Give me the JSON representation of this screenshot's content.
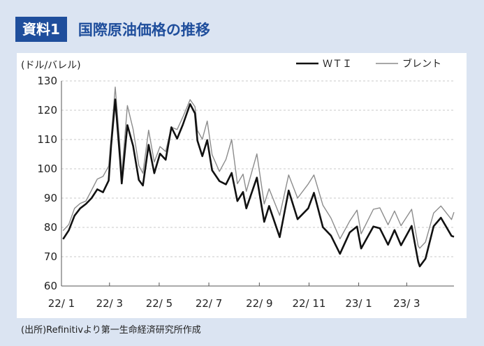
{
  "header": {
    "badge": "資料1",
    "title": "国際原油価格の推移"
  },
  "source": "(出所)Refinitivより第一生命経済研究所作成",
  "colors": {
    "frame_bg": "#dbe4f2",
    "badge_bg": "#1f4e9c",
    "title": "#1f4e9c",
    "wti": "#111111",
    "brent": "#8c8c8c",
    "grid": "#c8c8c8"
  },
  "chart_data": {
    "type": "line",
    "unit_label": "(ドル/バレル)",
    "ylim": [
      60,
      130
    ],
    "yticks": [
      60,
      70,
      80,
      90,
      100,
      110,
      120,
      130
    ],
    "x_range": [
      "2022-01-01",
      "2023-04-28"
    ],
    "x_tick_labels": [
      "22/ 1",
      "22/ 3",
      "22/ 5",
      "22/ 7",
      "22/ 9",
      "22/ 11",
      "23/ 1",
      "23/ 3"
    ],
    "x_tick_dates": [
      "2022-01-01",
      "2022-03-01",
      "2022-05-01",
      "2022-07-01",
      "2022-09-01",
      "2022-11-01",
      "2023-01-01",
      "2023-03-01"
    ],
    "grid": "horizontal dashed",
    "legend": "top-right",
    "series": [
      {
        "name": "WTI",
        "legend_label": "ＷＴＩ",
        "points": [
          [
            "2022-01-03",
            76.0
          ],
          [
            "2022-01-10",
            79.0
          ],
          [
            "2022-01-17",
            84.0
          ],
          [
            "2022-01-24",
            86.5
          ],
          [
            "2022-01-31",
            88.0
          ],
          [
            "2022-02-07",
            90.0
          ],
          [
            "2022-02-14",
            93.0
          ],
          [
            "2022-02-21",
            92.0
          ],
          [
            "2022-02-28",
            96.0
          ],
          [
            "2022-03-03",
            108.0
          ],
          [
            "2022-03-08",
            123.7
          ],
          [
            "2022-03-14",
            103.0
          ],
          [
            "2022-03-16",
            95.0
          ],
          [
            "2022-03-23",
            114.9
          ],
          [
            "2022-03-30",
            107.8
          ],
          [
            "2022-04-06",
            96.2
          ],
          [
            "2022-04-11",
            94.3
          ],
          [
            "2022-04-18",
            108.2
          ],
          [
            "2022-04-25",
            98.5
          ],
          [
            "2022-05-02",
            105.2
          ],
          [
            "2022-05-09",
            103.1
          ],
          [
            "2022-05-16",
            114.2
          ],
          [
            "2022-05-23",
            110.3
          ],
          [
            "2022-05-30",
            115.0
          ],
          [
            "2022-06-08",
            122.1
          ],
          [
            "2022-06-14",
            118.9
          ],
          [
            "2022-06-17",
            109.6
          ],
          [
            "2022-06-23",
            104.3
          ],
          [
            "2022-06-29",
            109.8
          ],
          [
            "2022-07-05",
            99.5
          ],
          [
            "2022-07-14",
            95.8
          ],
          [
            "2022-07-22",
            94.7
          ],
          [
            "2022-07-29",
            98.6
          ],
          [
            "2022-08-05",
            89.0
          ],
          [
            "2022-08-12",
            92.1
          ],
          [
            "2022-08-16",
            86.5
          ],
          [
            "2022-08-29",
            97.0
          ],
          [
            "2022-09-07",
            81.9
          ],
          [
            "2022-09-13",
            87.3
          ],
          [
            "2022-09-26",
            76.7
          ],
          [
            "2022-10-07",
            92.6
          ],
          [
            "2022-10-18",
            82.8
          ],
          [
            "2022-10-31",
            86.5
          ],
          [
            "2022-11-07",
            91.8
          ],
          [
            "2022-11-18",
            80.1
          ],
          [
            "2022-11-28",
            77.2
          ],
          [
            "2022-12-09",
            71.0
          ],
          [
            "2022-12-21",
            78.3
          ],
          [
            "2022-12-30",
            80.3
          ],
          [
            "2023-01-04",
            72.8
          ],
          [
            "2023-01-19",
            80.3
          ],
          [
            "2023-01-27",
            79.7
          ],
          [
            "2023-02-06",
            74.1
          ],
          [
            "2023-02-14",
            79.1
          ],
          [
            "2023-02-22",
            73.9
          ],
          [
            "2023-03-07",
            80.5
          ],
          [
            "2023-03-15",
            68.4
          ],
          [
            "2023-03-17",
            66.7
          ],
          [
            "2023-03-24",
            69.3
          ],
          [
            "2023-04-03",
            80.4
          ],
          [
            "2023-04-12",
            83.3
          ],
          [
            "2023-04-25",
            77.1
          ],
          [
            "2023-04-28",
            76.8
          ]
        ]
      },
      {
        "name": "ブレント",
        "legend_label": "ブレント",
        "points": [
          [
            "2022-01-03",
            78.9
          ],
          [
            "2022-01-10",
            81.0
          ],
          [
            "2022-01-17",
            86.5
          ],
          [
            "2022-01-24",
            88.2
          ],
          [
            "2022-01-31",
            89.0
          ],
          [
            "2022-02-07",
            92.7
          ],
          [
            "2022-02-14",
            96.5
          ],
          [
            "2022-02-21",
            97.4
          ],
          [
            "2022-02-28",
            100.9
          ],
          [
            "2022-03-03",
            110.5
          ],
          [
            "2022-03-08",
            127.9
          ],
          [
            "2022-03-14",
            106.9
          ],
          [
            "2022-03-16",
            98.0
          ],
          [
            "2022-03-23",
            121.6
          ],
          [
            "2022-03-30",
            113.5
          ],
          [
            "2022-04-06",
            101.1
          ],
          [
            "2022-04-11",
            98.5
          ],
          [
            "2022-04-18",
            113.2
          ],
          [
            "2022-04-25",
            102.3
          ],
          [
            "2022-05-02",
            107.6
          ],
          [
            "2022-05-09",
            105.9
          ],
          [
            "2022-05-16",
            114.2
          ],
          [
            "2022-05-23",
            113.4
          ],
          [
            "2022-05-30",
            117.6
          ],
          [
            "2022-06-08",
            123.6
          ],
          [
            "2022-06-14",
            121.2
          ],
          [
            "2022-06-17",
            113.1
          ],
          [
            "2022-06-23",
            110.1
          ],
          [
            "2022-06-29",
            116.3
          ],
          [
            "2022-07-05",
            104.8
          ],
          [
            "2022-07-14",
            99.1
          ],
          [
            "2022-07-22",
            103.2
          ],
          [
            "2022-07-29",
            110.0
          ],
          [
            "2022-08-05",
            94.9
          ],
          [
            "2022-08-12",
            98.2
          ],
          [
            "2022-08-16",
            92.3
          ],
          [
            "2022-08-29",
            105.1
          ],
          [
            "2022-09-07",
            88.0
          ],
          [
            "2022-09-13",
            93.2
          ],
          [
            "2022-09-26",
            84.1
          ],
          [
            "2022-10-07",
            97.9
          ],
          [
            "2022-10-18",
            90.0
          ],
          [
            "2022-10-31",
            94.8
          ],
          [
            "2022-11-07",
            97.9
          ],
          [
            "2022-11-18",
            87.6
          ],
          [
            "2022-11-28",
            83.2
          ],
          [
            "2022-12-09",
            76.1
          ],
          [
            "2022-12-21",
            82.2
          ],
          [
            "2022-12-30",
            85.9
          ],
          [
            "2023-01-04",
            77.8
          ],
          [
            "2023-01-19",
            86.2
          ],
          [
            "2023-01-27",
            86.7
          ],
          [
            "2023-02-06",
            80.9
          ],
          [
            "2023-02-14",
            85.6
          ],
          [
            "2023-02-22",
            80.6
          ],
          [
            "2023-03-07",
            86.2
          ],
          [
            "2023-03-15",
            73.7
          ],
          [
            "2023-03-17",
            72.9
          ],
          [
            "2023-03-24",
            74.99
          ],
          [
            "2023-04-03",
            84.9
          ],
          [
            "2023-04-12",
            87.3
          ],
          [
            "2023-04-25",
            82.7
          ],
          [
            "2023-04-28",
            85.2
          ]
        ]
      }
    ]
  }
}
